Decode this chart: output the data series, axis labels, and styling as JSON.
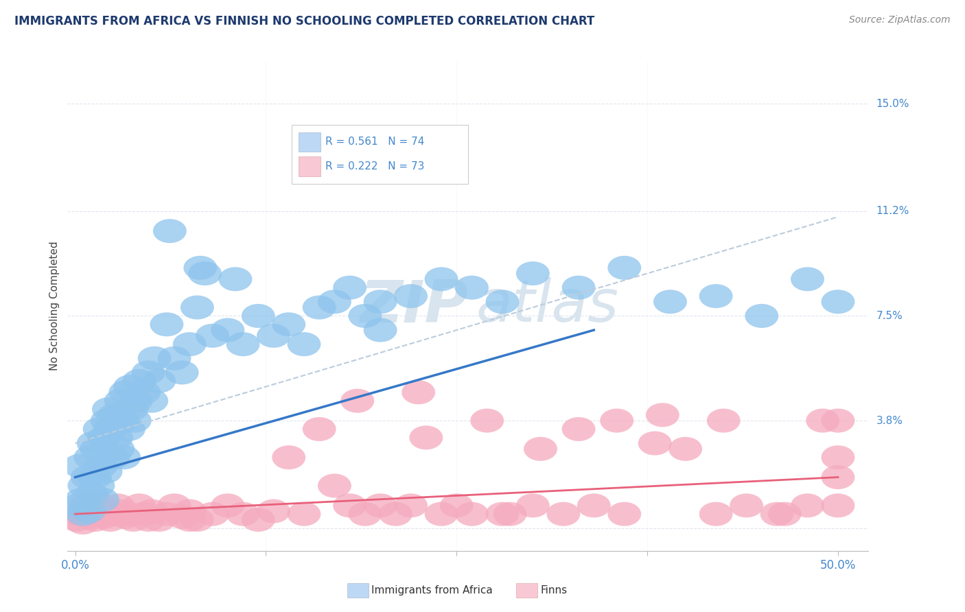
{
  "title": "IMMIGRANTS FROM AFRICA VS FINNISH NO SCHOOLING COMPLETED CORRELATION CHART",
  "source": "Source: ZipAtlas.com",
  "xlabel_ticks": [
    "0.0%",
    "",
    "",
    "",
    "50.0%"
  ],
  "xlabel_vals": [
    0.0,
    12.5,
    25.0,
    37.5,
    50.0
  ],
  "ylabel": "No Schooling Completed",
  "ylabel_ticks": [
    0.0,
    3.8,
    7.5,
    11.2,
    15.0
  ],
  "ylabel_tick_labels": [
    "",
    "3.8%",
    "7.5%",
    "11.2%",
    "15.0%"
  ],
  "xlim": [
    -0.5,
    52.0
  ],
  "ylim": [
    -0.8,
    16.5
  ],
  "blue_R": 0.561,
  "blue_N": 74,
  "pink_R": 0.222,
  "pink_N": 73,
  "blue_color": "#8EC4ED",
  "pink_color": "#F5AABE",
  "blue_line_color": "#3578C8",
  "pink_line_color": "#E8607A",
  "dashed_line_color": "#BBCCDD",
  "watermark_color": "#D8E4EE",
  "legend_blue_face": "#BDD8F5",
  "legend_pink_face": "#F8C8D5",
  "background_color": "#FFFFFF",
  "grid_color": "#E0E5EE",
  "title_color": "#1E3A6E",
  "axis_label_color": "#4488CC",
  "blue_scatter_x": [
    0.2,
    0.3,
    0.4,
    0.5,
    0.6,
    0.8,
    0.9,
    1.0,
    1.1,
    1.2,
    1.3,
    1.4,
    1.5,
    1.6,
    1.7,
    1.8,
    1.9,
    2.0,
    2.1,
    2.2,
    2.3,
    2.5,
    2.6,
    2.7,
    2.8,
    3.0,
    3.1,
    3.2,
    3.3,
    3.5,
    3.6,
    3.7,
    3.9,
    4.0,
    4.2,
    4.5,
    4.8,
    5.0,
    5.2,
    5.5,
    6.0,
    6.5,
    7.0,
    7.5,
    8.0,
    8.5,
    9.0,
    10.0,
    11.0,
    12.0,
    13.0,
    14.0,
    15.0,
    16.0,
    17.0,
    18.0,
    19.0,
    20.0,
    22.0,
    24.0,
    26.0,
    28.0,
    30.0,
    33.0,
    36.0,
    39.0,
    42.0,
    45.0,
    48.0,
    50.0,
    6.2,
    8.2,
    10.5,
    20.0
  ],
  "blue_scatter_y": [
    0.8,
    2.2,
    1.0,
    0.5,
    1.5,
    1.8,
    0.6,
    2.5,
    1.2,
    3.0,
    1.8,
    2.8,
    1.5,
    3.5,
    2.2,
    1.0,
    3.2,
    2.0,
    3.8,
    4.2,
    3.5,
    2.5,
    4.0,
    3.2,
    2.8,
    4.5,
    3.8,
    2.5,
    4.8,
    3.5,
    5.0,
    4.2,
    3.8,
    4.5,
    5.2,
    4.8,
    5.5,
    4.5,
    6.0,
    5.2,
    7.2,
    6.0,
    5.5,
    6.5,
    7.8,
    9.0,
    6.8,
    7.0,
    6.5,
    7.5,
    6.8,
    7.2,
    6.5,
    7.8,
    8.0,
    8.5,
    7.5,
    8.0,
    8.2,
    8.8,
    8.5,
    8.0,
    9.0,
    8.5,
    9.2,
    8.0,
    8.2,
    7.5,
    8.8,
    8.0,
    10.5,
    9.2,
    8.8,
    7.0
  ],
  "pink_scatter_x": [
    0.1,
    0.3,
    0.5,
    0.7,
    0.9,
    1.1,
    1.3,
    1.5,
    1.7,
    1.9,
    2.1,
    2.3,
    2.5,
    2.8,
    3.0,
    3.3,
    3.5,
    3.8,
    4.2,
    4.5,
    5.0,
    5.5,
    6.0,
    6.5,
    7.0,
    7.5,
    8.0,
    9.0,
    10.0,
    11.0,
    12.0,
    13.0,
    14.0,
    15.0,
    16.0,
    17.0,
    18.0,
    19.0,
    20.0,
    21.0,
    22.0,
    23.0,
    24.0,
    25.0,
    26.0,
    27.0,
    28.0,
    30.0,
    32.0,
    34.0,
    36.0,
    38.0,
    40.0,
    42.0,
    44.0,
    46.0,
    48.0,
    50.0,
    4.8,
    7.5,
    18.5,
    22.5,
    28.5,
    33.0,
    35.5,
    38.5,
    42.5,
    46.5,
    49.0,
    50.0,
    30.5,
    50.0,
    50.0
  ],
  "pink_scatter_y": [
    0.3,
    0.5,
    0.2,
    0.8,
    0.4,
    0.6,
    0.3,
    0.5,
    0.8,
    0.4,
    0.6,
    0.3,
    0.5,
    0.8,
    0.6,
    0.4,
    0.5,
    0.3,
    0.8,
    0.5,
    0.6,
    0.3,
    0.5,
    0.8,
    0.4,
    0.6,
    0.3,
    0.5,
    0.8,
    0.5,
    0.3,
    0.6,
    2.5,
    0.5,
    3.5,
    1.5,
    0.8,
    0.5,
    0.8,
    0.5,
    0.8,
    3.2,
    0.5,
    0.8,
    0.5,
    3.8,
    0.5,
    0.8,
    0.5,
    0.8,
    0.5,
    3.0,
    2.8,
    0.5,
    0.8,
    0.5,
    0.8,
    1.8,
    0.3,
    0.3,
    4.5,
    4.8,
    0.5,
    3.5,
    3.8,
    4.0,
    3.8,
    0.5,
    3.8,
    2.5,
    2.8,
    3.8,
    0.8
  ],
  "blue_trend_x0": 0.0,
  "blue_trend_x1": 34.0,
  "blue_trend_y0": 1.8,
  "blue_trend_y1": 7.0,
  "dashed_trend_x0": 0.0,
  "dashed_trend_x1": 50.0,
  "dashed_trend_y0": 3.0,
  "dashed_trend_y1": 11.0,
  "pink_trend_x0": 0.0,
  "pink_trend_x1": 50.0,
  "pink_trend_y0": 0.5,
  "pink_trend_y1": 1.8
}
